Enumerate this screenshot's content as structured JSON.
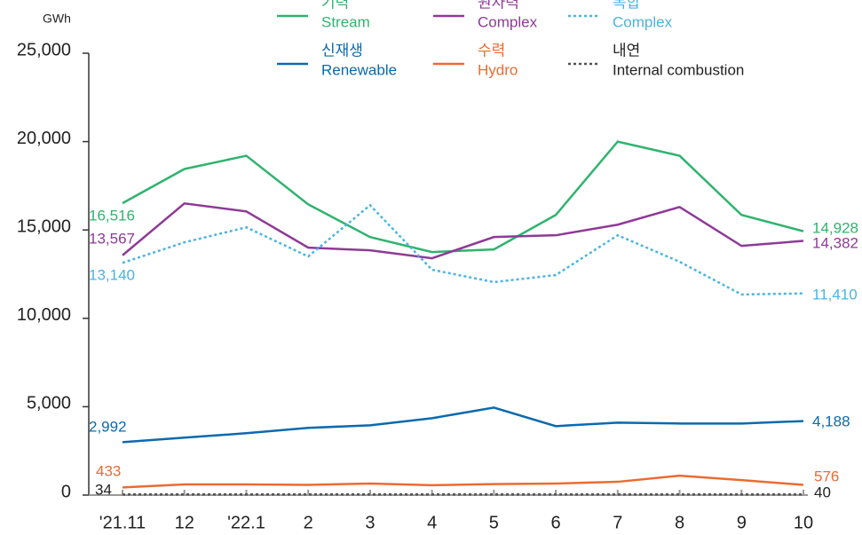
{
  "chart_data": {
    "type": "line",
    "y_axis_label": "GWh",
    "categories": [
      "'21.11",
      "12",
      "'22.1",
      "2",
      "3",
      "4",
      "5",
      "6",
      "7",
      "8",
      "9",
      "10"
    ],
    "ylim": [
      0,
      25000
    ],
    "yticks": [
      0,
      {
        "value": 5000,
        "label": "5,000"
      },
      {
        "value": 10000,
        "label": "10,000"
      },
      {
        "value": 15000,
        "label": "15,000"
      },
      {
        "value": 20000,
        "label": "20,000"
      },
      {
        "value": 25000,
        "label": "25,000"
      }
    ],
    "series": [
      {
        "name_ko": "기력",
        "name": "Stream",
        "color": "#2fb36e",
        "dash": "solid",
        "values": [
          16516,
          18450,
          19200,
          16450,
          14600,
          13750,
          13900,
          15850,
          20000,
          19200,
          15850,
          14928
        ],
        "value_labels": [
          "16,516",
          null,
          null,
          null,
          null,
          null,
          null,
          null,
          null,
          null,
          null,
          "14,928"
        ]
      },
      {
        "name_ko": "원자력",
        "name": "Complex",
        "color": "#8e3a96",
        "dash": "solid",
        "values": [
          13567,
          16500,
          16050,
          14000,
          13850,
          13400,
          14600,
          14700,
          15300,
          16300,
          14100,
          14382
        ],
        "value_labels": [
          "13,567",
          null,
          null,
          null,
          null,
          null,
          null,
          null,
          null,
          null,
          null,
          "14,382"
        ]
      },
      {
        "name_ko": "복합",
        "name": "Complex",
        "color": "#4ab4e0",
        "dash": "dotted",
        "values": [
          13140,
          14300,
          15150,
          13500,
          16400,
          12750,
          12050,
          12450,
          14700,
          13200,
          11350,
          11410
        ],
        "value_labels": [
          "13,140",
          null,
          null,
          null,
          null,
          null,
          null,
          null,
          null,
          null,
          null,
          "11,410"
        ]
      },
      {
        "name_ko": "신재생",
        "name": "Renewable",
        "color": "#0a6aad",
        "dash": "solid",
        "values": [
          2992,
          3250,
          3500,
          3800,
          3950,
          4350,
          4950,
          3900,
          4100,
          4050,
          4050,
          4188
        ],
        "value_labels": [
          "2,992",
          null,
          null,
          null,
          null,
          null,
          null,
          null,
          null,
          null,
          null,
          "4,188"
        ]
      },
      {
        "name_ko": "수력",
        "name": "Hydro",
        "color": "#ec6b32",
        "dash": "solid",
        "values": [
          433,
          600,
          600,
          580,
          650,
          560,
          620,
          650,
          750,
          1100,
          850,
          576
        ]
      },
      {
        "name_ko": "내연",
        "name": "Internal combustion",
        "color": "#555555",
        "dash": "dotted",
        "values": [
          34,
          40,
          40,
          40,
          40,
          40,
          40,
          40,
          40,
          40,
          40,
          40
        ]
      }
    ]
  }
}
